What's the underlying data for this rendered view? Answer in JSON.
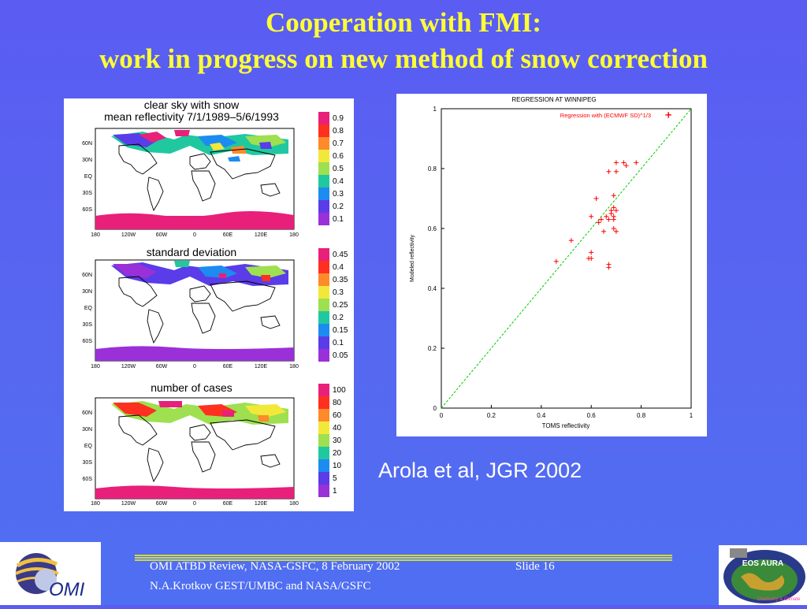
{
  "title": {
    "line1": "Cooperation with FMI:",
    "line2": "work in progress on new method of snow correction"
  },
  "maps": [
    {
      "title1": "clear sky with snow",
      "title2": "mean reflectivity 7/1/1989–5/6/1993",
      "colorbar": [
        "0.9",
        "0.8",
        "0.7",
        "0.6",
        "0.5",
        "0.4",
        "0.3",
        "0.2",
        "0.1"
      ]
    },
    {
      "title1": "standard deviation",
      "colorbar": [
        "0.45",
        "0.4",
        "0.35",
        "0.3",
        "0.25",
        "0.2",
        "0.15",
        "0.1",
        "0.05"
      ]
    },
    {
      "title1": "number of cases",
      "colorbar": [
        "100",
        "80",
        "60",
        "40",
        "30",
        "20",
        "10",
        "5",
        "1"
      ]
    }
  ],
  "map_axes": {
    "lat": [
      "60N",
      "30N",
      "EQ",
      "30S",
      "60S"
    ],
    "lon": [
      "180",
      "120W",
      "60W",
      "0",
      "60E",
      "120E",
      "180"
    ]
  },
  "colorbar_colors": [
    "#e8207a",
    "#ff3020",
    "#ff8a2a",
    "#f2e83a",
    "#9ee050",
    "#20c8a0",
    "#1c8cf0",
    "#5a3ce8",
    "#9a30d8"
  ],
  "chart_data": {
    "type": "scatter",
    "title": "REGRESSION AT WINNIPEG",
    "xlabel": "TOMS reflectivity",
    "ylabel": "Modeled reflectivity",
    "xlim": [
      0,
      1
    ],
    "ylim": [
      0,
      1
    ],
    "xticks": [
      "0",
      "0.2",
      "0.4",
      "0.6",
      "0.8",
      "1"
    ],
    "yticks": [
      "0",
      "0.2",
      "0.4",
      "0.6",
      "0.8",
      "1"
    ],
    "legend_location": "top-right",
    "series": [
      {
        "name": "Regression with (ECMWF SD)^1/3",
        "color": "#ff0000",
        "marker": "+",
        "points": [
          [
            0.46,
            0.49
          ],
          [
            0.52,
            0.56
          ],
          [
            0.59,
            0.5
          ],
          [
            0.6,
            0.5
          ],
          [
            0.6,
            0.52
          ],
          [
            0.6,
            0.64
          ],
          [
            0.62,
            0.7
          ],
          [
            0.63,
            0.62
          ],
          [
            0.64,
            0.63
          ],
          [
            0.65,
            0.59
          ],
          [
            0.66,
            0.64
          ],
          [
            0.67,
            0.63
          ],
          [
            0.67,
            0.47
          ],
          [
            0.67,
            0.48
          ],
          [
            0.68,
            0.65
          ],
          [
            0.68,
            0.66
          ],
          [
            0.69,
            0.6
          ],
          [
            0.69,
            0.63
          ],
          [
            0.69,
            0.64
          ],
          [
            0.69,
            0.67
          ],
          [
            0.69,
            0.71
          ],
          [
            0.7,
            0.59
          ],
          [
            0.7,
            0.66
          ],
          [
            0.67,
            0.79
          ],
          [
            0.7,
            0.79
          ],
          [
            0.7,
            0.82
          ],
          [
            0.73,
            0.82
          ],
          [
            0.74,
            0.81
          ],
          [
            0.78,
            0.82
          ],
          [
            0.91,
            0.98
          ]
        ]
      },
      {
        "name": "",
        "color": "#00cc00",
        "type": "dashed-line",
        "points": [
          [
            0,
            0
          ],
          [
            1,
            1
          ]
        ]
      }
    ]
  },
  "citation": "Arola et al, JGR 2002",
  "footer": {
    "line1": "OMI ATBD Review, NASA-GSFC, 8 February 2002",
    "slide": "Slide 16",
    "line2": "N.A.Krotkov GEST/UMBC and NASA/GSFC"
  },
  "logos": {
    "left": "OMI",
    "right_lines": [
      "EOS AURA",
      "Chemistry & Climate"
    ]
  }
}
